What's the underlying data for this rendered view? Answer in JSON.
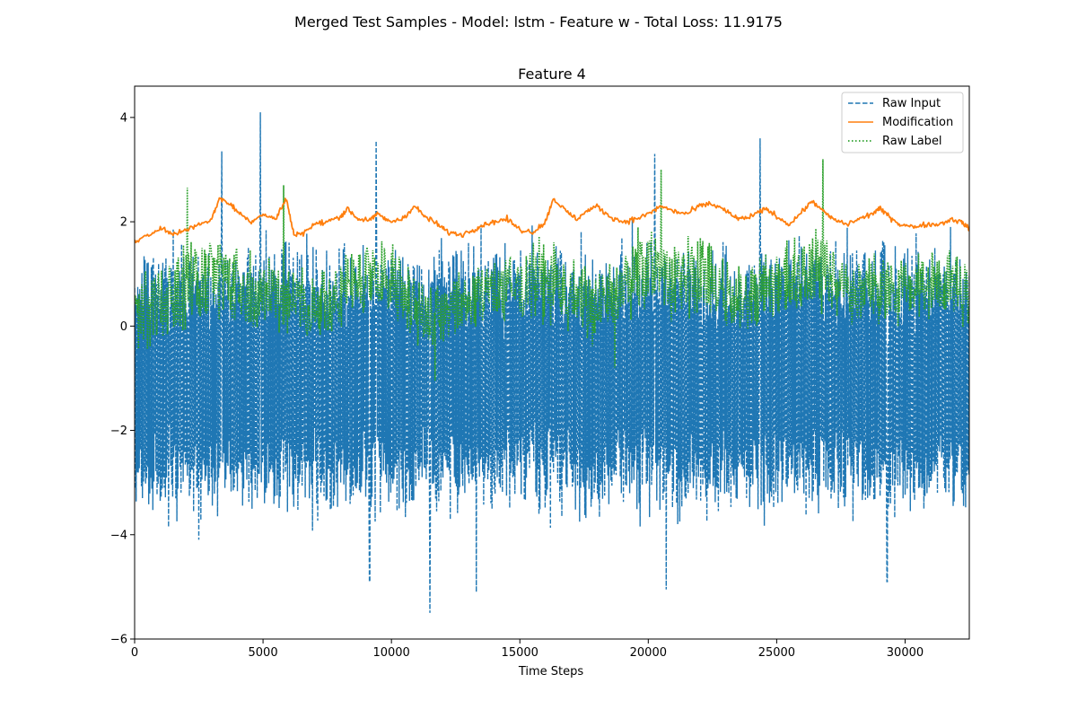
{
  "chart_data": {
    "type": "line",
    "suptitle": "Merged Test Samples - Model: lstm - Feature w - Total Loss: 11.9175",
    "title": "Feature 4",
    "xlabel": "Time Steps",
    "ylabel": "",
    "xlim": [
      0,
      32500
    ],
    "ylim": [
      -6,
      4.6
    ],
    "xticks": [
      0,
      5000,
      10000,
      15000,
      20000,
      25000,
      30000
    ],
    "yticks": [
      -6,
      -4,
      -2,
      0,
      2,
      4
    ],
    "grid": false,
    "legend_position": "top-right",
    "series": [
      {
        "name": "Raw Input",
        "style": "dashed",
        "color": "#1f77b4",
        "mean": -1.0,
        "typical_range": [
          -3.0,
          1.8
        ],
        "extremes": [
          {
            "x": 3400,
            "y": 3.35
          },
          {
            "x": 4900,
            "y": 4.1
          },
          {
            "x": 9400,
            "y": 3.55
          },
          {
            "x": 24350,
            "y": 3.6
          },
          {
            "x": 20250,
            "y": 3.3
          },
          {
            "x": 9150,
            "y": -4.9
          },
          {
            "x": 11500,
            "y": -5.5
          },
          {
            "x": 13300,
            "y": -5.1
          },
          {
            "x": 20700,
            "y": -5.05
          },
          {
            "x": 29300,
            "y": -4.9
          }
        ]
      },
      {
        "name": "Modification",
        "style": "solid",
        "color": "#ff7f0e",
        "points": [
          [
            0,
            1.6
          ],
          [
            600,
            1.75
          ],
          [
            1000,
            1.9
          ],
          [
            1500,
            1.75
          ],
          [
            2000,
            1.85
          ],
          [
            2500,
            1.95
          ],
          [
            3000,
            2.05
          ],
          [
            3300,
            2.45
          ],
          [
            3700,
            2.35
          ],
          [
            4000,
            2.2
          ],
          [
            4500,
            2.0
          ],
          [
            5000,
            2.15
          ],
          [
            5500,
            2.05
          ],
          [
            5900,
            2.45
          ],
          [
            6200,
            1.75
          ],
          [
            6600,
            1.8
          ],
          [
            7000,
            1.95
          ],
          [
            7500,
            2.0
          ],
          [
            8000,
            2.1
          ],
          [
            8300,
            2.25
          ],
          [
            8700,
            2.05
          ],
          [
            9200,
            2.05
          ],
          [
            9500,
            2.15
          ],
          [
            9900,
            2.0
          ],
          [
            10400,
            2.05
          ],
          [
            10900,
            2.3
          ],
          [
            11300,
            2.1
          ],
          [
            11800,
            1.95
          ],
          [
            12200,
            1.8
          ],
          [
            12700,
            1.75
          ],
          [
            13200,
            1.85
          ],
          [
            13600,
            1.95
          ],
          [
            14000,
            2.0
          ],
          [
            14500,
            2.05
          ],
          [
            15000,
            1.85
          ],
          [
            15500,
            1.8
          ],
          [
            16000,
            2.0
          ],
          [
            16300,
            2.45
          ],
          [
            16800,
            2.2
          ],
          [
            17200,
            2.05
          ],
          [
            17600,
            2.2
          ],
          [
            18000,
            2.3
          ],
          [
            18500,
            2.1
          ],
          [
            19000,
            2.0
          ],
          [
            19500,
            2.05
          ],
          [
            20000,
            2.15
          ],
          [
            20500,
            2.3
          ],
          [
            21000,
            2.2
          ],
          [
            21500,
            2.15
          ],
          [
            22000,
            2.3
          ],
          [
            22400,
            2.35
          ],
          [
            22900,
            2.25
          ],
          [
            23300,
            2.1
          ],
          [
            23700,
            2.05
          ],
          [
            24200,
            2.15
          ],
          [
            24600,
            2.25
          ],
          [
            25000,
            2.1
          ],
          [
            25500,
            1.95
          ],
          [
            26000,
            2.2
          ],
          [
            26400,
            2.4
          ],
          [
            26800,
            2.2
          ],
          [
            27200,
            2.05
          ],
          [
            27700,
            1.95
          ],
          [
            28200,
            2.05
          ],
          [
            28700,
            2.15
          ],
          [
            29000,
            2.25
          ],
          [
            29400,
            2.1
          ],
          [
            29800,
            1.95
          ],
          [
            30300,
            1.9
          ],
          [
            30800,
            1.95
          ],
          [
            31300,
            1.95
          ],
          [
            31800,
            2.05
          ],
          [
            32200,
            2.0
          ],
          [
            32500,
            1.85
          ]
        ]
      },
      {
        "name": "Raw Label",
        "style": "dotted",
        "color": "#2ca02c",
        "envelope": [
          [
            0,
            -0.2,
            0.9
          ],
          [
            1000,
            -0.3,
            1.2
          ],
          [
            2000,
            0.0,
            1.4
          ],
          [
            3000,
            0.2,
            1.8
          ],
          [
            4000,
            0.0,
            1.5
          ],
          [
            5000,
            0.1,
            1.3
          ],
          [
            6000,
            -0.1,
            1.1
          ],
          [
            7000,
            -0.3,
            0.9
          ],
          [
            8000,
            0.0,
            1.3
          ],
          [
            9000,
            0.2,
            1.5
          ],
          [
            10000,
            0.3,
            1.6
          ],
          [
            11000,
            -0.2,
            1.0
          ],
          [
            12000,
            -0.3,
            0.8
          ],
          [
            13000,
            0.0,
            1.0
          ],
          [
            14000,
            0.2,
            1.3
          ],
          [
            15000,
            0.1,
            1.4
          ],
          [
            16000,
            0.3,
            1.6
          ],
          [
            17000,
            0.0,
            1.2
          ],
          [
            18000,
            -0.2,
            0.9
          ],
          [
            19000,
            0.1,
            1.3
          ],
          [
            20000,
            0.4,
            1.8
          ],
          [
            21000,
            0.2,
            1.5
          ],
          [
            22000,
            0.3,
            1.7
          ],
          [
            23000,
            0.1,
            1.2
          ],
          [
            24000,
            0.0,
            1.2
          ],
          [
            25000,
            0.2,
            1.4
          ],
          [
            26000,
            0.5,
            1.8
          ],
          [
            27000,
            0.3,
            1.6
          ],
          [
            28000,
            0.0,
            1.2
          ],
          [
            29000,
            0.1,
            1.3
          ],
          [
            30000,
            0.2,
            1.3
          ],
          [
            31000,
            0.2,
            1.3
          ],
          [
            32500,
            0.1,
            1.2
          ]
        ],
        "extremes": [
          {
            "x": 2050,
            "y": 2.65
          },
          {
            "x": 5800,
            "y": 2.7
          },
          {
            "x": 20500,
            "y": 3.0
          },
          {
            "x": 26800,
            "y": 3.2
          },
          {
            "x": 11700,
            "y": -1.05
          },
          {
            "x": 18700,
            "y": -0.8
          }
        ]
      }
    ]
  }
}
